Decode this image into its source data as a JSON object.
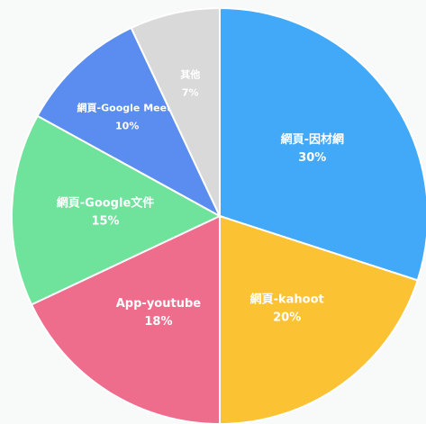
{
  "chart_data": {
    "type": "pie",
    "categories": [
      "網頁-因材網",
      "網頁-kahoot",
      "App-youtube",
      "網頁-Google文件",
      "網頁-Google Meets",
      "其他"
    ],
    "values": [
      30,
      20,
      18,
      15,
      10,
      7
    ],
    "value_labels": [
      "30%",
      "20%",
      "18%",
      "15%",
      "10%",
      "7%"
    ],
    "colors": [
      "#42a8f8",
      "#fbc233",
      "#ee6c8c",
      "#6fe29c",
      "#5b8cf0",
      "#d9d9d9"
    ]
  }
}
